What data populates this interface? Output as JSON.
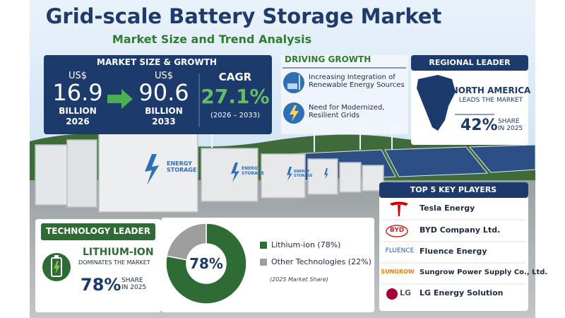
{
  "header": {
    "title": "Grid-scale Battery Storage Market",
    "subtitle": "Market Size and Trend Analysis"
  },
  "market": {
    "heading": "MARKET SIZE & GROWTH",
    "start": {
      "currency": "US$",
      "value": "16.9",
      "unit": "BILLION",
      "year": "2026"
    },
    "end": {
      "currency": "US$",
      "value": "90.6",
      "unit": "BILLION",
      "year": "2033"
    },
    "cagr": {
      "label": "CAGR",
      "value": "27.1%",
      "period": "(2026 – 2033)"
    }
  },
  "drivers": {
    "heading": "DRIVING GROWTH",
    "items": [
      "Increasing Integration of Renewable Energy Sources",
      "Need for Modernized, Resilient Grids"
    ]
  },
  "regional": {
    "heading": "REGIONAL LEADER",
    "region": "NORTH AMERICA",
    "note": "LEADS THE MARKET",
    "share": "42%",
    "share_label": "SHARE IN 2025"
  },
  "photo": {
    "label": "ENERGY STORAGE"
  },
  "technology": {
    "heading": "TECHNOLOGY LEADER",
    "name": "LITHIUM-ION",
    "note": "DOMINATES THE MARKET",
    "share": "78%",
    "share_label": "SHARE IN 2025"
  },
  "chart_data": {
    "type": "donut",
    "categories": [
      "Lithium-ion (78%)",
      "Other Technologies (22%)"
    ],
    "values": [
      78,
      22
    ],
    "colors": [
      "#2f6b34",
      "#9e9e9e"
    ],
    "center_label": "78%",
    "note": "(2025 Market Share)"
  },
  "players": {
    "heading": "TOP 5 KEY PLAYERS",
    "items": [
      {
        "name": "Tesla Energy"
      },
      {
        "logo": "BYD",
        "name": "BYD Company Ltd."
      },
      {
        "logo": "FLUENCE",
        "name": "Fluence Energy"
      },
      {
        "logo": "SUNGROW",
        "name": "Sungrow Power Supply Co., Ltd."
      },
      {
        "logo": "LG",
        "name": "LG Energy Solution"
      }
    ]
  }
}
